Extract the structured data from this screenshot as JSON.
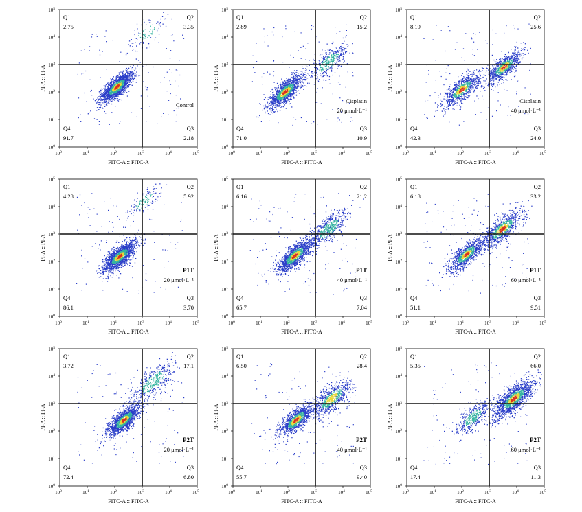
{
  "axes": {
    "xlabel": "FITC-A :: FITC-A",
    "ylabel": "PI-A :: PI-A",
    "scale": "log",
    "xlim": [
      1,
      100000
    ],
    "ylim": [
      1,
      100000
    ],
    "ticks": [
      {
        "base": "10",
        "exp": "0"
      },
      {
        "base": "10",
        "exp": "1"
      },
      {
        "base": "10",
        "exp": "2"
      },
      {
        "base": "10",
        "exp": "3"
      },
      {
        "base": "10",
        "exp": "4"
      },
      {
        "base": "10",
        "exp": "5"
      }
    ],
    "gate": {
      "x": 1000,
      "y": 1000
    }
  },
  "colors": {
    "low_density": "#2b3fc9",
    "mid_density": "#35b3a0",
    "high_density": "#e8d93a",
    "peak_density": "#d9301e",
    "gate_line": "#111111"
  },
  "chart_data": [
    {
      "type": "scatter",
      "condition_bold": "",
      "condition_lines": [
        "Control"
      ],
      "quadrants": [
        {
          "name": "Q1",
          "value": "2.75"
        },
        {
          "name": "Q2",
          "value": "3.35"
        },
        {
          "name": "Q3",
          "value": "2.18"
        },
        {
          "name": "Q4",
          "value": "91.7"
        }
      ],
      "clusters": [
        {
          "x": 120,
          "y": 150,
          "spread": 0.28,
          "weight": 0.9
        },
        {
          "x": 1500,
          "y": 15000,
          "spread": 0.35,
          "weight": 0.05
        }
      ]
    },
    {
      "type": "scatter",
      "condition_bold": "",
      "condition_lines": [
        "Cisplatin",
        "20 μmol·L⁻¹"
      ],
      "quadrants": [
        {
          "name": "Q1",
          "value": "2.89"
        },
        {
          "name": "Q2",
          "value": "15.2"
        },
        {
          "name": "Q3",
          "value": "10.9"
        },
        {
          "name": "Q4",
          "value": "71.0"
        }
      ],
      "clusters": [
        {
          "x": 80,
          "y": 100,
          "spread": 0.3,
          "weight": 0.7
        },
        {
          "x": 3000,
          "y": 1200,
          "spread": 0.35,
          "weight": 0.2
        }
      ]
    },
    {
      "type": "scatter",
      "condition_bold": "",
      "condition_lines": [
        "Cisplatin",
        "40 μmol·L⁻¹"
      ],
      "quadrants": [
        {
          "name": "Q1",
          "value": "8.19"
        },
        {
          "name": "Q2",
          "value": "25.6"
        },
        {
          "name": "Q3",
          "value": "24.0"
        },
        {
          "name": "Q4",
          "value": "42.3"
        }
      ],
      "clusters": [
        {
          "x": 100,
          "y": 120,
          "spread": 0.32,
          "weight": 0.45
        },
        {
          "x": 3500,
          "y": 800,
          "spread": 0.3,
          "weight": 0.45
        }
      ]
    },
    {
      "type": "scatter",
      "condition_bold": "P1T",
      "condition_lines": [
        "20 μmol·L⁻¹"
      ],
      "quadrants": [
        {
          "name": "Q1",
          "value": "4.28"
        },
        {
          "name": "Q2",
          "value": "5.92"
        },
        {
          "name": "Q3",
          "value": "3.70"
        },
        {
          "name": "Q4",
          "value": "86.1"
        }
      ],
      "clusters": [
        {
          "x": 150,
          "y": 150,
          "spread": 0.28,
          "weight": 0.88
        },
        {
          "x": 1200,
          "y": 15000,
          "spread": 0.3,
          "weight": 0.07
        }
      ]
    },
    {
      "type": "scatter",
      "condition_bold": "P1T",
      "condition_lines": [
        "40 μmol·L⁻¹"
      ],
      "quadrants": [
        {
          "name": "Q1",
          "value": "6.16"
        },
        {
          "name": "Q2",
          "value": "21.2"
        },
        {
          "name": "Q3",
          "value": "7.04"
        },
        {
          "name": "Q4",
          "value": "65.7"
        }
      ],
      "clusters": [
        {
          "x": 180,
          "y": 160,
          "spread": 0.3,
          "weight": 0.65
        },
        {
          "x": 3000,
          "y": 1500,
          "spread": 0.35,
          "weight": 0.28
        }
      ]
    },
    {
      "type": "scatter",
      "condition_bold": "P1T",
      "condition_lines": [
        "60 μmol·L⁻¹"
      ],
      "quadrants": [
        {
          "name": "Q1",
          "value": "6.18"
        },
        {
          "name": "Q2",
          "value": "33.2"
        },
        {
          "name": "Q3",
          "value": "9.51"
        },
        {
          "name": "Q4",
          "value": "51.1"
        }
      ],
      "clusters": [
        {
          "x": 150,
          "y": 180,
          "spread": 0.3,
          "weight": 0.5
        },
        {
          "x": 3000,
          "y": 1500,
          "spread": 0.35,
          "weight": 0.42
        }
      ]
    },
    {
      "type": "scatter",
      "condition_bold": "P2T",
      "condition_lines": [
        "20 μmol·L⁻¹"
      ],
      "quadrants": [
        {
          "name": "Q1",
          "value": "3.72"
        },
        {
          "name": "Q2",
          "value": "17.1"
        },
        {
          "name": "Q3",
          "value": "6.80"
        },
        {
          "name": "Q4",
          "value": "72.4"
        }
      ],
      "clusters": [
        {
          "x": 220,
          "y": 250,
          "spread": 0.28,
          "weight": 0.72
        },
        {
          "x": 2500,
          "y": 6000,
          "spread": 0.4,
          "weight": 0.22
        }
      ]
    },
    {
      "type": "scatter",
      "condition_bold": "P2T",
      "condition_lines": [
        "40 μmol·L⁻¹"
      ],
      "quadrants": [
        {
          "name": "Q1",
          "value": "6.50"
        },
        {
          "name": "Q2",
          "value": "28.4"
        },
        {
          "name": "Q3",
          "value": "9.40"
        },
        {
          "name": "Q4",
          "value": "55.7"
        }
      ],
      "clusters": [
        {
          "x": 200,
          "y": 250,
          "spread": 0.3,
          "weight": 0.55
        },
        {
          "x": 4000,
          "y": 1500,
          "spread": 0.35,
          "weight": 0.38
        }
      ]
    },
    {
      "type": "scatter",
      "condition_bold": "P2T",
      "condition_lines": [
        "60 μmol·L⁻¹"
      ],
      "quadrants": [
        {
          "name": "Q1",
          "value": "5.35"
        },
        {
          "name": "Q2",
          "value": "66.0"
        },
        {
          "name": "Q3",
          "value": "11.3"
        },
        {
          "name": "Q4",
          "value": "17.4"
        }
      ],
      "clusters": [
        {
          "x": 250,
          "y": 300,
          "spread": 0.3,
          "weight": 0.2
        },
        {
          "x": 8000,
          "y": 1500,
          "spread": 0.35,
          "weight": 0.75
        }
      ]
    }
  ]
}
